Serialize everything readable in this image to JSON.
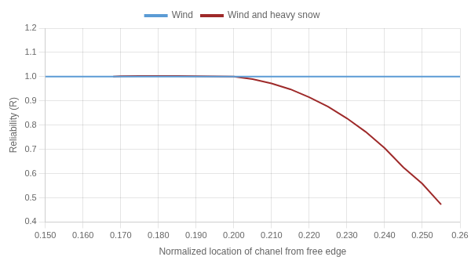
{
  "chart_data": {
    "type": "line",
    "xlabel": "Normalized location of chanel from free edge",
    "ylabel": "Reliability (R)",
    "xlim": [
      0.15,
      0.26
    ],
    "ylim": [
      0.4,
      1.2
    ],
    "xticks": [
      {
        "value": 0.15,
        "label": "0.150"
      },
      {
        "value": 0.16,
        "label": "0.160"
      },
      {
        "value": 0.17,
        "label": "0.170"
      },
      {
        "value": 0.18,
        "label": "0.180"
      },
      {
        "value": 0.19,
        "label": "0.190"
      },
      {
        "value": 0.2,
        "label": "0.200"
      },
      {
        "value": 0.21,
        "label": "0.210"
      },
      {
        "value": 0.22,
        "label": "0.220"
      },
      {
        "value": 0.23,
        "label": "0.230"
      },
      {
        "value": 0.24,
        "label": "0.240"
      },
      {
        "value": 0.25,
        "label": "0.250"
      },
      0.26
    ],
    "yticks": [
      0.4,
      0.5,
      0.6,
      0.7,
      0.8,
      0.9,
      {
        "value": 1.0,
        "label": "1.0"
      },
      1.1,
      1.2
    ],
    "series": [
      {
        "name": "Wind",
        "color": "#5b9bd5",
        "x": [
          0.15,
          0.26
        ],
        "values": [
          1.0,
          1.0
        ]
      },
      {
        "name": "Wind and heavy snow",
        "color": "#9e2a2a",
        "x": [
          0.168,
          0.17,
          0.175,
          0.18,
          0.185,
          0.19,
          0.195,
          0.2,
          0.205,
          0.21,
          0.215,
          0.22,
          0.225,
          0.23,
          0.235,
          0.24,
          0.245,
          0.25,
          0.255
        ],
        "values": [
          1.0,
          1.002,
          1.003,
          1.003,
          1.003,
          1.002,
          1.001,
          1.0,
          0.99,
          0.972,
          0.948,
          0.915,
          0.876,
          0.828,
          0.772,
          0.705,
          0.625,
          0.558,
          0.472
        ]
      }
    ],
    "grid": true,
    "legend": "top"
  }
}
